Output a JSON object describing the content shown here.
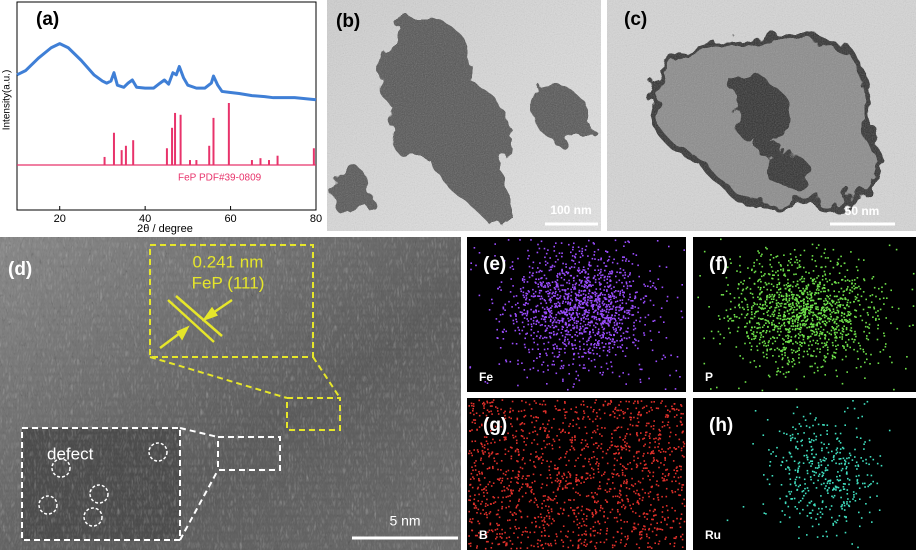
{
  "chart_data": {
    "type": "line",
    "label": "(a)",
    "xlabel": "2θ / degree",
    "ylabel": "Intensity(a.u.)",
    "xlim": [
      10,
      80
    ],
    "xticks": [
      20,
      40,
      60,
      80
    ],
    "ylim": [
      0,
      100
    ],
    "color": "#3f7fd6",
    "x": [
      10,
      12,
      15,
      18,
      20,
      22,
      25,
      28,
      30,
      31,
      32,
      32.7,
      33.5,
      35,
      36,
      37,
      38,
      40,
      42,
      43.5,
      44.5,
      45.5,
      46.5,
      47.3,
      48,
      49,
      50,
      52,
      54,
      55.5,
      56,
      57,
      58,
      60,
      62,
      65,
      68,
      70,
      75,
      80
    ],
    "values": [
      65,
      67,
      73,
      78,
      80,
      78,
      72,
      65,
      62,
      61,
      62,
      66,
      60,
      59,
      61,
      62.5,
      59,
      58.6,
      58.6,
      61,
      62.5,
      60.5,
      66,
      65,
      69,
      63.5,
      60,
      58.6,
      58.6,
      61,
      64.4,
      60,
      57,
      56.5,
      56,
      55,
      54.5,
      54,
      54,
      53
    ],
    "reference": {
      "label": "FeP PDF#39-0809",
      "color": "#e8336b",
      "positions": [
        30.5,
        32.7,
        34.5,
        35.5,
        37.2,
        45.1,
        46.3,
        47,
        48.3,
        50.5,
        52,
        55,
        56,
        59.6,
        65,
        67,
        69,
        71,
        79.5
      ],
      "intensities": [
        13,
        52,
        24,
        31,
        40,
        27,
        60,
        84,
        81,
        8,
        8,
        31,
        76,
        100,
        8,
        11,
        8,
        15,
        27
      ]
    }
  },
  "panels": [
    {
      "label": "(b)",
      "scale_bar": "100 nm"
    },
    {
      "label": "(c)",
      "scale_bar": "50 nm"
    },
    {
      "label": "(d)",
      "scale_bar": "5 nm",
      "d_spacing": "0.241 nm",
      "plane": "FeP (111)",
      "inset": "defect"
    },
    {
      "label": "(e)",
      "element": "Fe"
    },
    {
      "label": "(f)",
      "element": "P"
    },
    {
      "label": "(g)",
      "element": "B"
    },
    {
      "label": "(h)",
      "element": "Ru"
    }
  ]
}
